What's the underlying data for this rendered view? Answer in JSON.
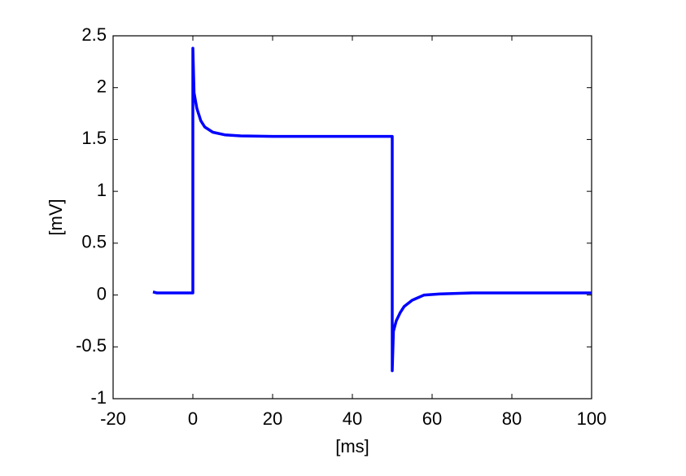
{
  "chart_data": {
    "type": "line",
    "xlabel": "[ms]",
    "ylabel": "[mV]",
    "x": [
      -10,
      -9,
      -5,
      0,
      0,
      0.3,
      1,
      2,
      3,
      5,
      8,
      12,
      20,
      50,
      50,
      50.3,
      51,
      52,
      53,
      55,
      58,
      62,
      70,
      100
    ],
    "series": [
      {
        "color": "#0000ff",
        "values": [
          0.03,
          0.02,
          0.02,
          0.02,
          2.38,
          1.95,
          1.8,
          1.68,
          1.62,
          1.57,
          1.545,
          1.535,
          1.53,
          1.53,
          -0.73,
          -0.35,
          -0.25,
          -0.17,
          -0.11,
          -0.05,
          0.0,
          0.01,
          0.02,
          0.02
        ]
      }
    ],
    "xlim": [
      -20,
      100
    ],
    "xticks": [
      -20,
      0,
      20,
      40,
      60,
      80,
      100
    ],
    "ylim": [
      -1,
      2.5
    ],
    "yticks": [
      -1,
      -0.5,
      0,
      0.5,
      1,
      1.5,
      2,
      2.5
    ],
    "grid": false
  }
}
